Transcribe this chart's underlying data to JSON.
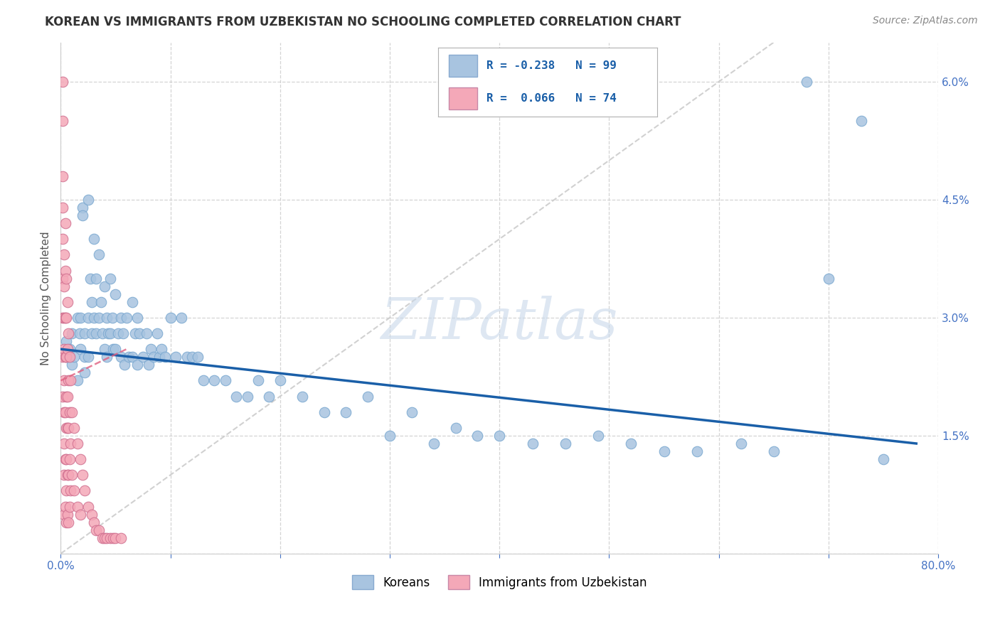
{
  "title": "KOREAN VS IMMIGRANTS FROM UZBEKISTAN NO SCHOOLING COMPLETED CORRELATION CHART",
  "source": "Source: ZipAtlas.com",
  "ylabel": "No Schooling Completed",
  "xlim": [
    0.0,
    0.8
  ],
  "ylim": [
    0.0,
    0.065
  ],
  "xticks": [
    0.0,
    0.1,
    0.2,
    0.3,
    0.4,
    0.5,
    0.6,
    0.7,
    0.8
  ],
  "xticklabels": [
    "0.0%",
    "",
    "",
    "",
    "",
    "",
    "",
    "",
    "80.0%"
  ],
  "yticks": [
    0.0,
    0.015,
    0.03,
    0.045,
    0.06
  ],
  "yticklabels_left": [
    "",
    "",
    "",
    "",
    ""
  ],
  "yticklabels_right": [
    "",
    "1.5%",
    "3.0%",
    "4.5%",
    "6.0%"
  ],
  "legend_korean_label": "Koreans",
  "legend_uzbek_label": "Immigrants from Uzbekistan",
  "korean_color": "#a8c4e0",
  "uzbek_color": "#f4a8b8",
  "korean_line_color": "#1a5fa8",
  "uzbek_line_color": "#e06080",
  "watermark": "ZIPatlas",
  "background_color": "#ffffff",
  "grid_color": "#d0d0d0",
  "diag_line_color": "#cccccc",
  "title_fontsize": 12,
  "source_fontsize": 10,
  "tick_fontsize": 11,
  "legend_fontsize": 12,
  "korean_points_x": [
    0.005,
    0.005,
    0.008,
    0.01,
    0.01,
    0.012,
    0.015,
    0.015,
    0.017,
    0.018,
    0.018,
    0.02,
    0.02,
    0.022,
    0.022,
    0.022,
    0.025,
    0.025,
    0.025,
    0.027,
    0.028,
    0.028,
    0.03,
    0.03,
    0.032,
    0.032,
    0.035,
    0.035,
    0.037,
    0.038,
    0.04,
    0.04,
    0.042,
    0.042,
    0.043,
    0.045,
    0.045,
    0.047,
    0.048,
    0.05,
    0.05,
    0.052,
    0.055,
    0.055,
    0.057,
    0.058,
    0.06,
    0.062,
    0.065,
    0.065,
    0.068,
    0.07,
    0.07,
    0.072,
    0.075,
    0.078,
    0.08,
    0.082,
    0.085,
    0.088,
    0.09,
    0.092,
    0.095,
    0.1,
    0.105,
    0.11,
    0.115,
    0.12,
    0.125,
    0.13,
    0.14,
    0.15,
    0.16,
    0.17,
    0.18,
    0.19,
    0.2,
    0.22,
    0.24,
    0.26,
    0.28,
    0.3,
    0.32,
    0.34,
    0.36,
    0.38,
    0.4,
    0.43,
    0.46,
    0.49,
    0.52,
    0.55,
    0.58,
    0.62,
    0.65,
    0.68,
    0.7,
    0.73,
    0.75
  ],
  "korean_points_y": [
    0.027,
    0.025,
    0.026,
    0.028,
    0.024,
    0.025,
    0.03,
    0.022,
    0.028,
    0.03,
    0.026,
    0.044,
    0.043,
    0.028,
    0.025,
    0.023,
    0.045,
    0.03,
    0.025,
    0.035,
    0.032,
    0.028,
    0.04,
    0.03,
    0.035,
    0.028,
    0.038,
    0.03,
    0.032,
    0.028,
    0.034,
    0.026,
    0.03,
    0.025,
    0.028,
    0.035,
    0.028,
    0.03,
    0.026,
    0.033,
    0.026,
    0.028,
    0.03,
    0.025,
    0.028,
    0.024,
    0.03,
    0.025,
    0.032,
    0.025,
    0.028,
    0.03,
    0.024,
    0.028,
    0.025,
    0.028,
    0.024,
    0.026,
    0.025,
    0.028,
    0.025,
    0.026,
    0.025,
    0.03,
    0.025,
    0.03,
    0.025,
    0.025,
    0.025,
    0.022,
    0.022,
    0.022,
    0.02,
    0.02,
    0.022,
    0.02,
    0.022,
    0.02,
    0.018,
    0.018,
    0.02,
    0.015,
    0.018,
    0.014,
    0.016,
    0.015,
    0.015,
    0.014,
    0.014,
    0.015,
    0.014,
    0.013,
    0.013,
    0.014,
    0.013,
    0.06,
    0.035,
    0.055,
    0.012
  ],
  "uzbek_points_x": [
    0.002,
    0.002,
    0.002,
    0.002,
    0.002,
    0.002,
    0.002,
    0.002,
    0.002,
    0.003,
    0.003,
    0.003,
    0.003,
    0.003,
    0.003,
    0.003,
    0.003,
    0.003,
    0.004,
    0.004,
    0.004,
    0.004,
    0.004,
    0.004,
    0.004,
    0.005,
    0.005,
    0.005,
    0.005,
    0.005,
    0.005,
    0.005,
    0.005,
    0.006,
    0.006,
    0.006,
    0.006,
    0.006,
    0.006,
    0.007,
    0.007,
    0.007,
    0.007,
    0.007,
    0.008,
    0.008,
    0.008,
    0.008,
    0.009,
    0.009,
    0.009,
    0.01,
    0.01,
    0.012,
    0.012,
    0.015,
    0.015,
    0.018,
    0.018,
    0.02,
    0.022,
    0.025,
    0.028,
    0.03,
    0.032,
    0.035,
    0.038,
    0.04,
    0.042,
    0.045,
    0.048,
    0.05,
    0.055
  ],
  "uzbek_points_y": [
    0.06,
    0.055,
    0.048,
    0.044,
    0.04,
    0.035,
    0.03,
    0.025,
    0.02,
    0.038,
    0.034,
    0.03,
    0.026,
    0.022,
    0.018,
    0.014,
    0.01,
    0.005,
    0.042,
    0.036,
    0.03,
    0.025,
    0.018,
    0.012,
    0.006,
    0.035,
    0.03,
    0.025,
    0.02,
    0.016,
    0.012,
    0.008,
    0.004,
    0.032,
    0.026,
    0.02,
    0.016,
    0.01,
    0.005,
    0.028,
    0.022,
    0.016,
    0.01,
    0.004,
    0.025,
    0.018,
    0.012,
    0.006,
    0.022,
    0.014,
    0.008,
    0.018,
    0.01,
    0.016,
    0.008,
    0.014,
    0.006,
    0.012,
    0.005,
    0.01,
    0.008,
    0.006,
    0.005,
    0.004,
    0.003,
    0.003,
    0.002,
    0.002,
    0.002,
    0.002,
    0.002,
    0.002,
    0.002
  ],
  "korean_line_x": [
    0.0,
    0.78
  ],
  "korean_line_y": [
    0.026,
    0.014
  ],
  "uzbek_line_x": [
    0.0,
    0.06
  ],
  "uzbek_line_y": [
    0.022,
    0.026
  ],
  "diag_line_x": [
    0.0,
    0.65
  ],
  "diag_line_y": [
    0.0,
    0.065
  ]
}
